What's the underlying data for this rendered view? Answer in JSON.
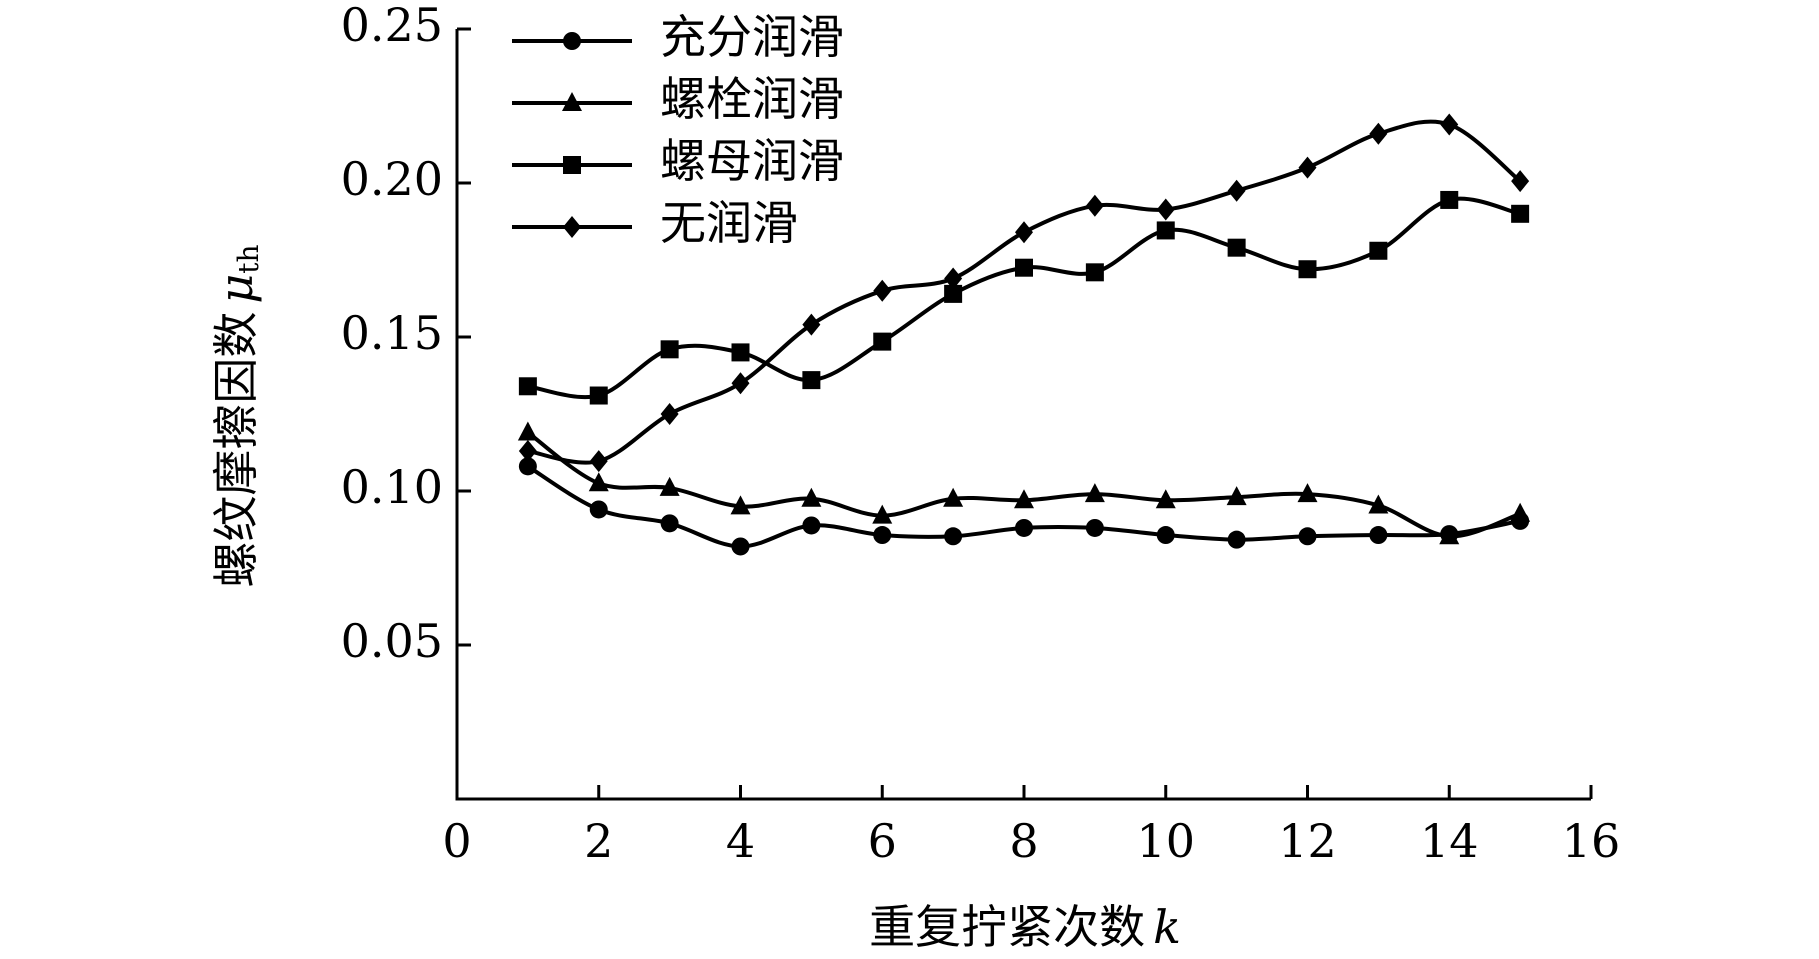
{
  "chart_data": {
    "type": "line",
    "ylabel": "螺纹摩擦因数",
    "ylabel_symbol": "μ",
    "ylabel_subscript": "th",
    "xlabel": "重复拧紧次数",
    "xlabel_symbol": "k",
    "x": [
      1,
      2,
      3,
      4,
      5,
      6,
      7,
      8,
      9,
      10,
      11,
      12,
      13,
      14,
      15
    ],
    "series": [
      {
        "name": "充分润滑",
        "color": "#000000",
        "marker": "circle",
        "values": [
          0.108,
          0.094,
          0.0895,
          0.082,
          0.0888,
          0.0857,
          0.0853,
          0.088,
          0.088,
          0.0857,
          0.0842,
          0.0853,
          0.0857,
          0.086,
          0.0903
        ]
      },
      {
        "name": "螺栓润滑",
        "color": "#000000",
        "marker": "triangle",
        "values": [
          0.119,
          0.1025,
          0.101,
          0.095,
          0.0975,
          0.092,
          0.0975,
          0.097,
          0.099,
          0.097,
          0.098,
          0.099,
          0.0953,
          0.0853,
          0.0926
        ]
      },
      {
        "name": "螺母润滑",
        "color": "#000000",
        "marker": "square",
        "values": [
          0.134,
          0.131,
          0.146,
          0.145,
          0.136,
          0.1485,
          0.164,
          0.1725,
          0.171,
          0.1846,
          0.179,
          0.172,
          0.178,
          0.1945,
          0.19
        ]
      },
      {
        "name": "无润滑",
        "color": "#000000",
        "marker": "diamond",
        "values": [
          0.113,
          0.1097,
          0.125,
          0.135,
          0.154,
          0.165,
          0.169,
          0.184,
          0.1926,
          0.1914,
          0.1975,
          0.205,
          0.216,
          0.219,
          0.2006
        ]
      }
    ],
    "xlim": [
      0,
      16
    ],
    "xticks": [
      0,
      2,
      4,
      6,
      8,
      10,
      12,
      14,
      16
    ],
    "ylim": [
      0,
      0.25
    ],
    "yticks": [
      0.05,
      {
        "value": 0.1,
        "label": "0.10"
      },
      0.15,
      {
        "value": 0.2,
        "label": "0.20"
      },
      0.25
    ],
    "grid": false,
    "legend": "upper left"
  }
}
